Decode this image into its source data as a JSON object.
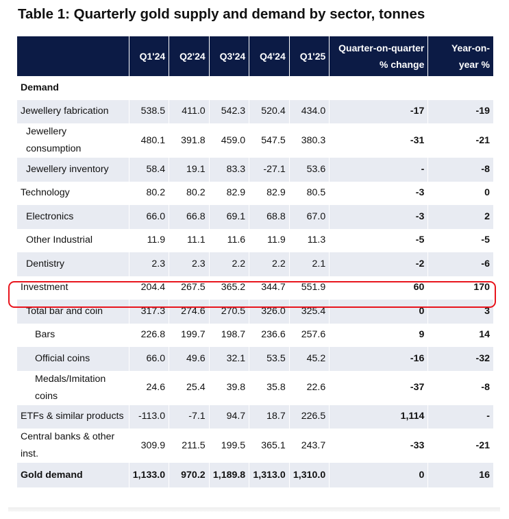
{
  "title": "Table 1: Quarterly gold supply and demand by sector, tonnes",
  "columns": [
    "",
    "Q1'24",
    "Q2'24",
    "Q3'24",
    "Q4'24",
    "Q1'25",
    "Quarter-on-quarter",
    "% change",
    "Year-on-",
    "year %"
  ],
  "section_label": "Demand",
  "rows": [
    {
      "label": "Jewellery fabrication",
      "q1_24": "538.5",
      "q2_24": "411.0",
      "q3_24": "542.3",
      "q4_24": "520.4",
      "q1_25": "434.0",
      "qoq": "-17",
      "yoy": "-19"
    },
    {
      "label_1": "Jewellery",
      "label_2": "consumption",
      "q1_24": "480.1",
      "q2_24": "391.8",
      "q3_24": "459.0",
      "q4_24": "547.5",
      "q1_25": "380.3",
      "qoq": "-31",
      "yoy": "-21"
    },
    {
      "label": "Jewellery inventory",
      "q1_24": "58.4",
      "q2_24": "19.1",
      "q3_24": "83.3",
      "q4_24": "-27.1",
      "q1_25": "53.6",
      "qoq": "-",
      "yoy": "-8"
    },
    {
      "label": "Technology",
      "q1_24": "80.2",
      "q2_24": "80.2",
      "q3_24": "82.9",
      "q4_24": "82.9",
      "q1_25": "80.5",
      "qoq": "-3",
      "yoy": "0"
    },
    {
      "label": "Electronics",
      "q1_24": "66.0",
      "q2_24": "66.8",
      "q3_24": "69.1",
      "q4_24": "68.8",
      "q1_25": "67.0",
      "qoq": "-3",
      "yoy": "2"
    },
    {
      "label": "Other Industrial",
      "q1_24": "11.9",
      "q2_24": "11.1",
      "q3_24": "11.6",
      "q4_24": "11.9",
      "q1_25": "11.3",
      "qoq": "-5",
      "yoy": "-5"
    },
    {
      "label": "Dentistry",
      "q1_24": "2.3",
      "q2_24": "2.3",
      "q3_24": "2.2",
      "q4_24": "2.2",
      "q1_25": "2.1",
      "qoq": "-2",
      "yoy": "-6"
    },
    {
      "label": "Investment",
      "q1_24": "204.4",
      "q2_24": "267.5",
      "q3_24": "365.2",
      "q4_24": "344.7",
      "q1_25": "551.9",
      "qoq": "60",
      "yoy": "170"
    },
    {
      "label": "Total bar and coin",
      "q1_24": "317.3",
      "q2_24": "274.6",
      "q3_24": "270.5",
      "q4_24": "326.0",
      "q1_25": "325.4",
      "qoq": "0",
      "yoy": "3"
    },
    {
      "label": "Bars",
      "q1_24": "226.8",
      "q2_24": "199.7",
      "q3_24": "198.7",
      "q4_24": "236.6",
      "q1_25": "257.6",
      "qoq": "9",
      "yoy": "14"
    },
    {
      "label": "Official coins",
      "q1_24": "66.0",
      "q2_24": "49.6",
      "q3_24": "32.1",
      "q4_24": "53.5",
      "q1_25": "45.2",
      "qoq": "-16",
      "yoy": "-32"
    },
    {
      "label_1": "Medals/Imitation",
      "label_2": "coins",
      "q1_24": "24.6",
      "q2_24": "25.4",
      "q3_24": "39.8",
      "q4_24": "35.8",
      "q1_25": "22.6",
      "qoq": "-37",
      "yoy": "-8"
    },
    {
      "label": "ETFs & similar products",
      "q1_24": "-113.0",
      "q2_24": "-7.1",
      "q3_24": "94.7",
      "q4_24": "18.7",
      "q1_25": "226.5",
      "qoq": "1,114",
      "yoy": "-"
    },
    {
      "label_1": "Central banks & other",
      "label_2": "inst.",
      "q1_24": "309.9",
      "q2_24": "211.5",
      "q3_24": "199.5",
      "q4_24": "365.1",
      "q1_25": "243.7",
      "qoq": "-33",
      "yoy": "-21"
    }
  ],
  "total": {
    "label": "Gold demand",
    "q1_24": "1,133.0",
    "q2_24": "970.2",
    "q3_24": "1,189.8",
    "q4_24": "1,313.0",
    "q1_25": "1,310.0",
    "qoq": "0",
    "yoy": "16"
  },
  "highlight": {
    "row": "Investment",
    "color": "#e8141c"
  },
  "colors": {
    "header_bg": "#0c1b45",
    "row_shade": "#e8ebf2"
  }
}
